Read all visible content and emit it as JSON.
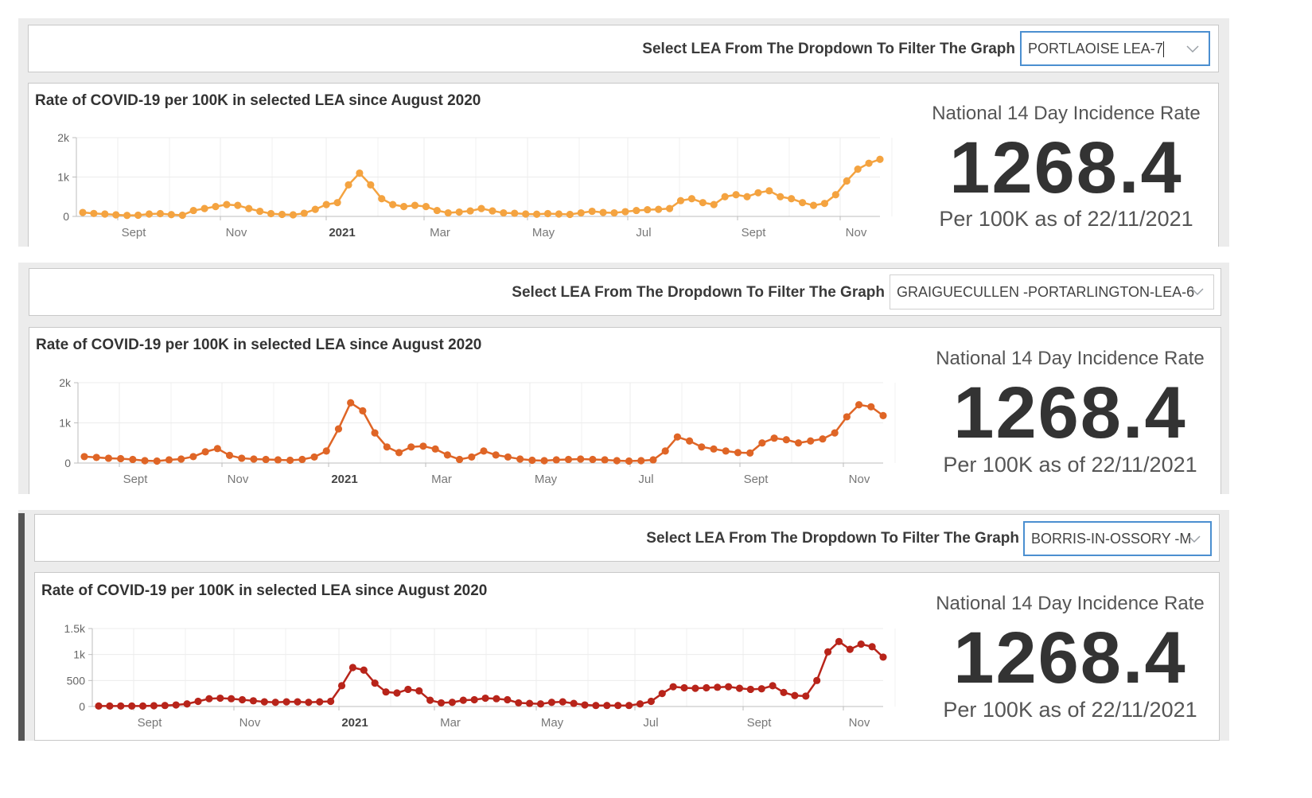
{
  "filter_prompt": "Select LEA From The Dropdown To Filter The Graph",
  "chart_title": "Rate of COVID-19 per 100K in selected LEA since August 2020",
  "stat": {
    "label": "National 14 Day Incidence Rate",
    "value": "1268.4",
    "sub": "Per 100K as of 22/11/2021"
  },
  "panels": [
    {
      "dropdown": {
        "selected": "PORTLAOISE LEA-7",
        "focused": true
      },
      "chart_data": {
        "type": "line",
        "title": "Rate of COVID-19 per 100K in selected LEA since August 2020",
        "x_tick_labels": [
          "Sept",
          "Nov",
          "2021",
          "Mar",
          "May",
          "Jul",
          "Sept",
          "Nov"
        ],
        "y_tick_labels": [
          "0",
          "1k",
          "2k"
        ],
        "ylim": [
          0,
          2000
        ],
        "color": "#f4a340",
        "grid": true,
        "values": [
          100,
          75,
          60,
          40,
          25,
          30,
          60,
          70,
          45,
          30,
          150,
          200,
          250,
          300,
          280,
          200,
          130,
          70,
          50,
          40,
          80,
          180,
          300,
          350,
          800,
          1100,
          800,
          450,
          300,
          250,
          280,
          250,
          150,
          90,
          110,
          140,
          200,
          140,
          90,
          80,
          60,
          55,
          70,
          60,
          50,
          90,
          130,
          100,
          90,
          120,
          150,
          170,
          180,
          200,
          400,
          450,
          350,
          300,
          500,
          550,
          500,
          600,
          650,
          500,
          450,
          350,
          280,
          330,
          550,
          900,
          1200,
          1350,
          1450
        ]
      }
    },
    {
      "dropdown": {
        "selected": "GRAIGUECULLEN -PORTARLINGTON-LEA-6",
        "focused": false
      },
      "chart_data": {
        "type": "line",
        "title": "Rate of COVID-19 per 100K in selected LEA since August 2020",
        "x_tick_labels": [
          "Sept",
          "Nov",
          "2021",
          "Mar",
          "May",
          "Jul",
          "Sept",
          "Nov"
        ],
        "y_tick_labels": [
          "0",
          "1k",
          "2k"
        ],
        "ylim": [
          0,
          2000
        ],
        "color": "#df6526",
        "grid": true,
        "values": [
          160,
          140,
          120,
          110,
          90,
          60,
          50,
          80,
          100,
          160,
          280,
          360,
          190,
          120,
          100,
          90,
          80,
          70,
          90,
          150,
          300,
          850,
          1500,
          1300,
          750,
          400,
          260,
          400,
          420,
          350,
          200,
          90,
          150,
          300,
          200,
          150,
          100,
          70,
          60,
          80,
          90,
          100,
          90,
          80,
          60,
          50,
          60,
          80,
          300,
          650,
          550,
          400,
          350,
          300,
          260,
          250,
          500,
          620,
          580,
          500,
          550,
          600,
          750,
          1150,
          1450,
          1400,
          1180
        ]
      }
    },
    {
      "dropdown": {
        "selected": "BORRIS-IN-OSSORY -M",
        "focused": true
      },
      "chart_data": {
        "type": "line",
        "title": "Rate of COVID-19 per 100K in selected LEA since August 2020",
        "x_tick_labels": [
          "Sept",
          "Nov",
          "2021",
          "Mar",
          "May",
          "Jul",
          "Sept",
          "Nov"
        ],
        "y_tick_labels": [
          "0",
          "500",
          "1k",
          "1.5k"
        ],
        "ylim": [
          0,
          1500
        ],
        "color": "#b8241a",
        "grid": true,
        "values": [
          10,
          10,
          10,
          10,
          10,
          15,
          20,
          30,
          50,
          100,
          150,
          160,
          150,
          130,
          110,
          90,
          80,
          90,
          90,
          80,
          90,
          100,
          400,
          750,
          700,
          450,
          280,
          260,
          330,
          300,
          120,
          70,
          80,
          120,
          130,
          160,
          150,
          130,
          70,
          60,
          50,
          80,
          90,
          60,
          30,
          20,
          20,
          20,
          20,
          50,
          100,
          250,
          380,
          360,
          350,
          360,
          370,
          380,
          350,
          330,
          340,
          400,
          270,
          210,
          200,
          500,
          1050,
          1250,
          1100,
          1200,
          1150,
          950
        ]
      }
    }
  ]
}
